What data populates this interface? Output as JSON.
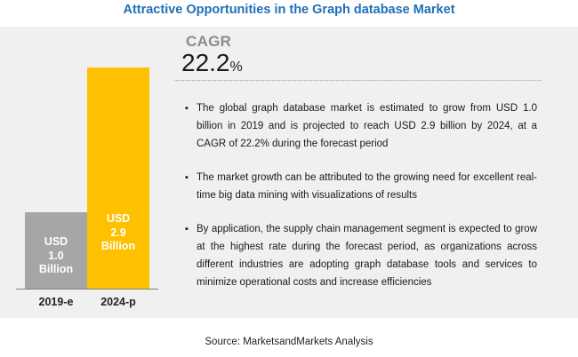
{
  "header": {
    "title": "Attractive Opportunities in the Graph database Market"
  },
  "chart_data": {
    "type": "bar",
    "categories": [
      "2019-e",
      "2024-p"
    ],
    "values": [
      1.0,
      2.9
    ],
    "data_labels": [
      "USD\n1.0\nBillion",
      "USD\n2.9\nBillion"
    ],
    "bar_colors": [
      "#a6a6a6",
      "#ffc000"
    ],
    "title": "",
    "xlabel": "",
    "ylabel": "",
    "ylim": [
      0,
      3.3
    ],
    "grid": false
  },
  "cagr": {
    "label": "CAGR",
    "value": "22.2",
    "unit": "%"
  },
  "bullets": [
    "The global graph database market is estimated to grow from USD 1.0 billion in 2019 and is projected to reach USD 2.9 billion by 2024, at a CAGR of 22.2% during the forecast period",
    "The market growth can be attributed to the growing need for excellent real-time big data mining with visualizations of results",
    "By application, the supply chain management segment is expected to grow at the highest rate during the forecast period, as organizations across different industries are adopting graph database tools and services to minimize operational costs and increase efficiencies"
  ],
  "bullet_glyph": "▪",
  "source": "Source: MarketsandMarkets Analysis"
}
